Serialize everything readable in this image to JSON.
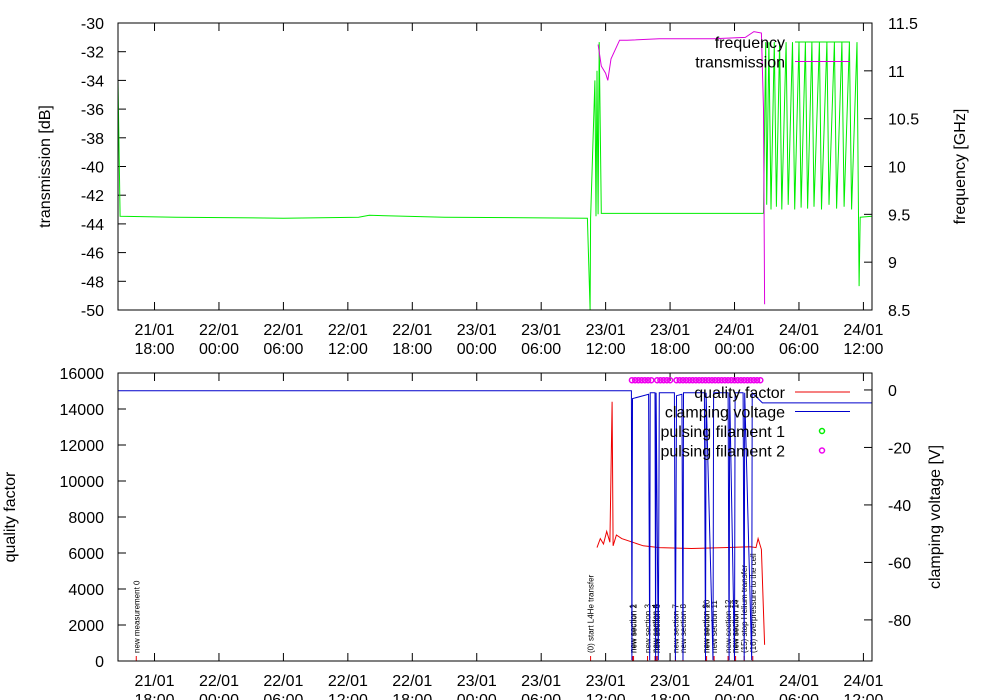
{
  "chart_data": [
    {
      "type": "line",
      "ylabel": "transmission [dB]",
      "y2label": "frequency [GHz]",
      "xlim": [
        14.6,
        84.8
      ],
      "xticks": [
        {
          "value": 18,
          "label": "21/01 18:00"
        },
        {
          "value": 24,
          "label": "22/01 00:00"
        },
        {
          "value": 30,
          "label": "22/01 06:00"
        },
        {
          "value": 36,
          "label": "22/01 12:00"
        },
        {
          "value": 42,
          "label": "22/01 18:00"
        },
        {
          "value": 48,
          "label": "23/01 00:00"
        },
        {
          "value": 54,
          "label": "23/01 06:00"
        },
        {
          "value": 60,
          "label": "23/01 12:00"
        },
        {
          "value": 66,
          "label": "23/01 18:00"
        },
        {
          "value": 72,
          "label": "24/01 00:00"
        },
        {
          "value": 78,
          "label": "24/01 06:00"
        },
        {
          "value": 84,
          "label": "24/01 12:00"
        }
      ],
      "ylim": [
        -50,
        -30
      ],
      "yticks": [
        -50,
        -48,
        -46,
        -44,
        -42,
        -40,
        -38,
        -36,
        -34,
        -32,
        -30
      ],
      "y2lim": [
        8.5,
        11.5
      ],
      "y2ticks": [
        8.5,
        9,
        9.5,
        10,
        10.5,
        11,
        11.5
      ],
      "legend": "upper right",
      "series": [
        {
          "name": "frequency",
          "color": "#00ee00",
          "axis": "y2",
          "x": [
            14.6,
            14.8,
            20,
            30,
            37,
            38,
            45,
            58.3,
            58.55,
            58.6,
            59.0,
            59.1,
            59.2,
            59.3,
            59.4,
            59.6,
            74.7,
            74.9,
            75.0,
            75.2,
            75.4,
            75.7,
            75.9,
            76.2,
            76.4,
            76.8,
            77.0,
            77.4,
            77.6,
            78.0,
            78.2,
            78.6,
            78.8,
            79.2,
            79.4,
            79.9,
            80.1,
            80.6,
            80.8,
            81.3,
            81.5,
            82.0,
            82.2,
            82.7,
            82.9,
            83.4,
            83.6,
            83.7,
            84.8
          ],
          "values": [
            10.9,
            9.48,
            9.47,
            9.46,
            9.47,
            9.49,
            9.47,
            9.46,
            8.5,
            9.46,
            10.9,
            9.48,
            11.0,
            9.5,
            11.3,
            9.51,
            9.51,
            11.3,
            9.6,
            11.3,
            9.55,
            11.3,
            9.58,
            11.3,
            9.55,
            11.3,
            9.6,
            11.3,
            9.55,
            11.3,
            9.57,
            11.3,
            9.56,
            11.3,
            9.58,
            11.3,
            9.55,
            11.3,
            9.6,
            11.3,
            9.56,
            11.3,
            9.58,
            11.3,
            9.55,
            11.3,
            8.75,
            9.47,
            9.48
          ]
        },
        {
          "name": "transmission",
          "color": "#dd00dd",
          "x": [
            59.3,
            59.6,
            60.0,
            60.2,
            60.5,
            61.3,
            62,
            65,
            70,
            73,
            73.8,
            74.5,
            74.7,
            74.8
          ],
          "values": [
            -31.5,
            -33.0,
            -33.5,
            -34,
            -32.5,
            -31.2,
            -31.2,
            -31.1,
            -31.1,
            -31.0,
            -30.6,
            -30.7,
            -36,
            -49.6
          ]
        }
      ]
    },
    {
      "type": "line",
      "ylabel": "quality factor",
      "y2label": "clamping voltage [V]",
      "xlim": [
        14.6,
        84.8
      ],
      "xticks": [
        {
          "value": 18,
          "label": "21/01 18:00"
        },
        {
          "value": 24,
          "label": "22/01 00:00"
        },
        {
          "value": 30,
          "label": "22/01 06:00"
        },
        {
          "value": 36,
          "label": "22/01 12:00"
        },
        {
          "value": 42,
          "label": "22/01 18:00"
        },
        {
          "value": 48,
          "label": "23/01 00:00"
        },
        {
          "value": 54,
          "label": "23/01 06:00"
        },
        {
          "value": 60,
          "label": "23/01 12:00"
        },
        {
          "value": 66,
          "label": "23/01 18:00"
        },
        {
          "value": 72,
          "label": "24/01 00:00"
        },
        {
          "value": 78,
          "label": "24/01 06:00"
        },
        {
          "value": 84,
          "label": "24/01 12:00"
        }
      ],
      "ylim": [
        0,
        16000
      ],
      "yticks": [
        0,
        2000,
        4000,
        6000,
        8000,
        10000,
        12000,
        14000,
        16000
      ],
      "y2lim": [
        -94.3,
        5.9
      ],
      "y2ticks": [
        -80,
        -60,
        -40,
        -20,
        0
      ],
      "legend": "upper right",
      "series": [
        {
          "name": "quality factor",
          "color": "#ee0000",
          "x": [
            59.2,
            59.5,
            59.8,
            60.1,
            60.4,
            60.6,
            60.7,
            61.0,
            61.5,
            62.5,
            63.5,
            65,
            68,
            71,
            73.5,
            74.0,
            74.2,
            74.5,
            74.8
          ],
          "values": [
            6300,
            6800,
            6500,
            7200,
            6600,
            14400,
            6400,
            7000,
            6800,
            6600,
            6400,
            6300,
            6250,
            6300,
            6350,
            6300,
            6800,
            6200,
            900
          ]
        },
        {
          "name": "clamping voltage",
          "color": "#0000cc",
          "axis": "y2",
          "x": [
            14.6,
            62.4,
            62.45,
            62.5,
            64.0,
            64.1,
            64.15,
            64.6,
            64.65,
            64.7,
            64.9,
            65.0,
            66.4,
            66.5,
            66.6,
            67.1,
            67.2,
            67.25,
            69.2,
            69.3,
            69.35,
            70.0,
            70.05,
            71.4,
            71.5,
            71.55,
            72.0,
            72.05,
            72.8,
            72.9,
            72.95,
            73.6,
            73.65,
            74.6,
            84.8
          ],
          "values": [
            -0.3,
            -0.3,
            -94,
            -3,
            -1.5,
            -94,
            -1,
            -1,
            -94,
            -1,
            -94,
            -1,
            -1,
            -94,
            -2,
            -1.5,
            -94,
            -1,
            -1,
            -94,
            -1,
            -94,
            -1,
            -1,
            -94,
            -1,
            -94,
            -1,
            -1,
            -94,
            -1,
            -94,
            -1,
            -4.5,
            -4.5
          ]
        },
        {
          "name": "pulsing filament 1",
          "color": "#00ee00",
          "style": "points",
          "x": [],
          "values": []
        },
        {
          "name": "pulsing filament 2",
          "color": "#ee00ee",
          "style": "points",
          "x": [
            62.45,
            62.75,
            63.05,
            63.35,
            63.65,
            63.95,
            64.25,
            64.8,
            65.1,
            65.4,
            65.7,
            66.0,
            66.6,
            66.9,
            67.2,
            67.5,
            67.8,
            68.1,
            68.4,
            68.7,
            69.0,
            69.3,
            69.6,
            69.9,
            70.2,
            70.5,
            70.8,
            71.1,
            71.4,
            71.7,
            72.0,
            72.3,
            72.6,
            72.9,
            73.2,
            73.5,
            73.8,
            74.1,
            74.4
          ],
          "values": [
            15600,
            15600,
            15600,
            15600,
            15600,
            15600,
            15600,
            15600,
            15600,
            15600,
            15600,
            15600,
            15600,
            15600,
            15600,
            15600,
            15600,
            15600,
            15600,
            15600,
            15600,
            15600,
            15600,
            15600,
            15600,
            15600,
            15600,
            15600,
            15600,
            15600,
            15600,
            15600,
            15600,
            15600,
            15600,
            15600,
            15600,
            15600,
            15600
          ]
        }
      ],
      "annotations": [
        {
          "x": 16.3,
          "text": "new measurement 0"
        },
        {
          "x": 58.6,
          "text": "(0) start L4He transfer"
        },
        {
          "x": 62.5,
          "text": "new section 1"
        },
        {
          "x": 62.6,
          "text": "new section 2"
        },
        {
          "x": 63.9,
          "text": "new section 3"
        },
        {
          "x": 64.6,
          "text": "new section 4"
        },
        {
          "x": 64.7,
          "text": "new section 5"
        },
        {
          "x": 64.8,
          "text": "new section 6"
        },
        {
          "x": 66.5,
          "text": "new section 7"
        },
        {
          "x": 67.2,
          "text": "new section 8"
        },
        {
          "x": 69.3,
          "text": "new section 9"
        },
        {
          "x": 69.4,
          "text": "new section 10"
        },
        {
          "x": 70.1,
          "text": "new section 11"
        },
        {
          "x": 71.4,
          "text": "new section 12"
        },
        {
          "x": 72.0,
          "text": "new section 13"
        },
        {
          "x": 72.1,
          "text": "new section 14"
        },
        {
          "x": 72.9,
          "text": "(15) stop Helium transfer"
        },
        {
          "x": 73.7,
          "text": "(16) overpressure to the cell"
        }
      ]
    }
  ]
}
